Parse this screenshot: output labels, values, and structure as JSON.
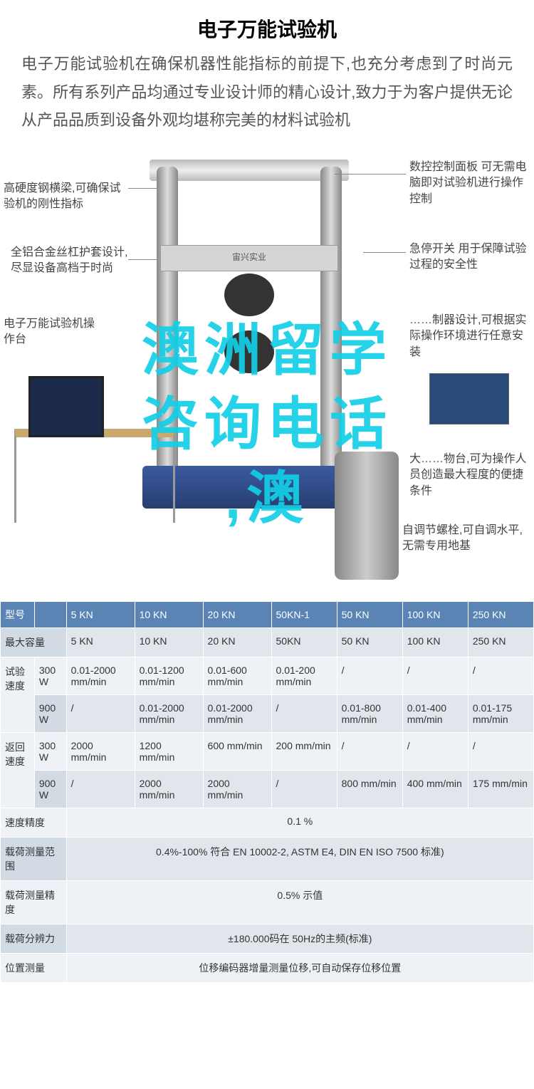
{
  "title": "电子万能试验机",
  "intro": "电子万能试验机在确保机器性能指标的前提下,也充分考虑到了时尚元素。所有系列产品均通过专业设计师的精心设计,致力于为客户提供无论从产品品质到设备外观均堪称完美的材料试验机",
  "brand": "宙兴实业",
  "overlay": {
    "line1": "澳洲留学",
    "line2": "咨询电话",
    "line3": ",澳"
  },
  "callouts": {
    "l1": "高硬度钢横梁,可确保试验机的刚性指标",
    "l2": "全铝合金丝杠护套设计,尽显设备高档于时尚",
    "l3": "电子万能试验机操作台",
    "r1": "数控控制面板\n可无需电脑即对试验机进行操作控制",
    "r2": "急停开关\n用于保障试验过程的安全性",
    "r3": "……制器设计,可根据实际操作环境进行任意安装",
    "r4": "大……物台,可为操作人员创造最大程度的便捷条件",
    "r5": "自调节螺栓,可自调水平,无需专用地基"
  },
  "colors": {
    "header_bg": "#5a84b4",
    "row_bg": "#e0e6ec",
    "row_alt_bg": "#eef2f6",
    "label_bg": "#d2dae3",
    "overlay_color": "#13cfe6",
    "base_blue": "#3a5aa0"
  },
  "table": {
    "header": [
      "型号",
      "",
      "5 KN",
      "10 KN",
      "20 KN",
      "50KN-1",
      "50 KN",
      "100 KN",
      "250 KN"
    ],
    "rows": [
      {
        "label": "最大容量",
        "sub": "",
        "cells": [
          "5 KN",
          "10 KN",
          "20 KN",
          "50KN",
          "50 KN",
          "100 KN",
          "250 KN"
        ],
        "alt": false
      },
      {
        "label": "试验速度",
        "sub": "300 W",
        "cells": [
          "0.01-2000 mm/min",
          "0.01-1200 mm/min",
          "0.01-600 mm/min",
          "0.01-200 mm/min",
          "/",
          "/",
          "/"
        ],
        "alt": true,
        "rowspan": 2
      },
      {
        "label": "",
        "sub": "900 W",
        "cells": [
          "/",
          "0.01-2000 mm/min",
          "0.01-2000 mm/min",
          "/",
          "0.01-800 mm/min",
          "0.01-400 mm/min",
          "0.01-175 mm/min"
        ],
        "alt": false
      },
      {
        "label": "返回速度",
        "sub": "300 W",
        "cells": [
          "2000 mm/min",
          "1200 mm/min",
          "600 mm/min",
          "200 mm/min",
          "/",
          "/",
          "/"
        ],
        "alt": true,
        "rowspan": 2
      },
      {
        "label": "",
        "sub": "900 W",
        "cells": [
          "/",
          "2000 mm/min",
          "2000 mm/min",
          "/",
          "800 mm/min",
          "400 mm/min",
          "175 mm/min"
        ],
        "alt": false
      },
      {
        "label": "速度精度",
        "merged": "0.1 %",
        "alt": true
      },
      {
        "label": "载荷测量范围",
        "merged": "0.4%-100% 符合 EN 10002-2, ASTM E4, DIN EN ISO 7500 标准)",
        "alt": false
      },
      {
        "label": "载荷测量精度",
        "merged": "0.5% 示值",
        "alt": true
      },
      {
        "label": "载荷分辨力",
        "merged": "±180.000码在 50Hz的主频(标准)",
        "alt": false
      },
      {
        "label": "位置测量",
        "merged": "位移编码器增量测量位移,可自动保存位移位置",
        "alt": true
      }
    ]
  }
}
